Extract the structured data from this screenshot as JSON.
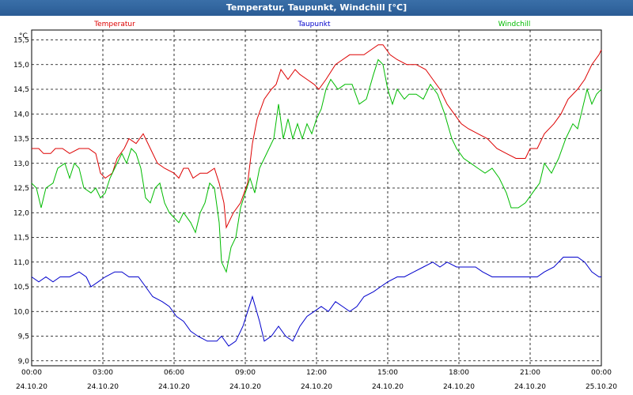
{
  "window": {
    "title": "Temperatur, Taupunkt, Windchill [°C]"
  },
  "chart_data": {
    "type": "line",
    "title": "Temperatur, Taupunkt, Windchill [°C]",
    "ylabel": "°C",
    "ylim": [
      8.9,
      15.7
    ],
    "y_ticks": [
      "9,0",
      "9,5",
      "10,0",
      "10,5",
      "11,0",
      "11,5",
      "12,0",
      "12,5",
      "13,0",
      "13,5",
      "14,0",
      "14,5",
      "15,0",
      "15,5"
    ],
    "x_ticks": [
      {
        "time": "00:00",
        "date": "24.10.20"
      },
      {
        "time": "03:00",
        "date": "24.10.20"
      },
      {
        "time": "06:00",
        "date": "24.10.20"
      },
      {
        "time": "09:00",
        "date": "24.10.20"
      },
      {
        "time": "12:00",
        "date": "24.10.20"
      },
      {
        "time": "15:00",
        "date": "24.10.20"
      },
      {
        "time": "18:00",
        "date": "24.10.20"
      },
      {
        "time": "21:00",
        "date": "24.10.20"
      },
      {
        "time": "00:00",
        "date": "25.10.20"
      }
    ],
    "x_range_hours": [
      0,
      24
    ],
    "grid": true,
    "legend_position": "top",
    "series": [
      {
        "name": "Temperatur",
        "color": "#dd0000",
        "points": [
          [
            0,
            13.3
          ],
          [
            0.3,
            13.3
          ],
          [
            0.5,
            13.2
          ],
          [
            0.8,
            13.2
          ],
          [
            1.0,
            13.3
          ],
          [
            1.3,
            13.3
          ],
          [
            1.6,
            13.2
          ],
          [
            2.0,
            13.3
          ],
          [
            2.4,
            13.3
          ],
          [
            2.7,
            13.2
          ],
          [
            2.9,
            12.8
          ],
          [
            3.1,
            12.7
          ],
          [
            3.4,
            12.8
          ],
          [
            3.6,
            13.1
          ],
          [
            3.9,
            13.3
          ],
          [
            4.1,
            13.5
          ],
          [
            4.4,
            13.4
          ],
          [
            4.7,
            13.6
          ],
          [
            5.0,
            13.3
          ],
          [
            5.3,
            13.0
          ],
          [
            5.6,
            12.9
          ],
          [
            6.0,
            12.8
          ],
          [
            6.2,
            12.7
          ],
          [
            6.4,
            12.9
          ],
          [
            6.6,
            12.9
          ],
          [
            6.8,
            12.7
          ],
          [
            7.1,
            12.8
          ],
          [
            7.4,
            12.8
          ],
          [
            7.7,
            12.9
          ],
          [
            7.9,
            12.6
          ],
          [
            8.1,
            12.2
          ],
          [
            8.2,
            11.7
          ],
          [
            8.5,
            12.0
          ],
          [
            8.8,
            12.2
          ],
          [
            9.1,
            12.6
          ],
          [
            9.3,
            13.4
          ],
          [
            9.5,
            13.9
          ],
          [
            9.8,
            14.3
          ],
          [
            10.1,
            14.5
          ],
          [
            10.3,
            14.6
          ],
          [
            10.5,
            14.9
          ],
          [
            10.8,
            14.7
          ],
          [
            11.1,
            14.9
          ],
          [
            11.3,
            14.8
          ],
          [
            11.6,
            14.7
          ],
          [
            11.9,
            14.6
          ],
          [
            12.1,
            14.5
          ],
          [
            12.4,
            14.7
          ],
          [
            12.8,
            15.0
          ],
          [
            13.1,
            15.1
          ],
          [
            13.4,
            15.2
          ],
          [
            13.7,
            15.2
          ],
          [
            14.0,
            15.2
          ],
          [
            14.3,
            15.3
          ],
          [
            14.6,
            15.4
          ],
          [
            14.8,
            15.4
          ],
          [
            15.1,
            15.2
          ],
          [
            15.4,
            15.1
          ],
          [
            15.8,
            15.0
          ],
          [
            16.2,
            15.0
          ],
          [
            16.6,
            14.9
          ],
          [
            16.9,
            14.7
          ],
          [
            17.2,
            14.5
          ],
          [
            17.5,
            14.2
          ],
          [
            17.8,
            14.0
          ],
          [
            18.1,
            13.8
          ],
          [
            18.4,
            13.7
          ],
          [
            18.8,
            13.6
          ],
          [
            19.2,
            13.5
          ],
          [
            19.6,
            13.3
          ],
          [
            20.0,
            13.2
          ],
          [
            20.4,
            13.1
          ],
          [
            20.8,
            13.1
          ],
          [
            21.0,
            13.3
          ],
          [
            21.3,
            13.3
          ],
          [
            21.6,
            13.6
          ],
          [
            22.0,
            13.8
          ],
          [
            22.3,
            14.0
          ],
          [
            22.6,
            14.3
          ],
          [
            23.0,
            14.5
          ],
          [
            23.3,
            14.7
          ],
          [
            23.6,
            15.0
          ],
          [
            23.9,
            15.2
          ],
          [
            24.0,
            15.3
          ]
        ]
      },
      {
        "name": "Taupunkt",
        "color": "#0000cc",
        "points": [
          [
            0,
            10.7
          ],
          [
            0.3,
            10.6
          ],
          [
            0.6,
            10.7
          ],
          [
            0.9,
            10.6
          ],
          [
            1.2,
            10.7
          ],
          [
            1.6,
            10.7
          ],
          [
            2.0,
            10.8
          ],
          [
            2.3,
            10.7
          ],
          [
            2.5,
            10.5
          ],
          [
            2.8,
            10.6
          ],
          [
            3.1,
            10.7
          ],
          [
            3.5,
            10.8
          ],
          [
            3.8,
            10.8
          ],
          [
            4.1,
            10.7
          ],
          [
            4.5,
            10.7
          ],
          [
            4.8,
            10.5
          ],
          [
            5.1,
            10.3
          ],
          [
            5.5,
            10.2
          ],
          [
            5.8,
            10.1
          ],
          [
            6.1,
            9.9
          ],
          [
            6.4,
            9.8
          ],
          [
            6.7,
            9.6
          ],
          [
            7.0,
            9.5
          ],
          [
            7.4,
            9.4
          ],
          [
            7.8,
            9.4
          ],
          [
            8.0,
            9.5
          ],
          [
            8.3,
            9.3
          ],
          [
            8.6,
            9.4
          ],
          [
            8.9,
            9.7
          ],
          [
            9.1,
            10.0
          ],
          [
            9.3,
            10.3
          ],
          [
            9.6,
            9.8
          ],
          [
            9.8,
            9.4
          ],
          [
            10.1,
            9.5
          ],
          [
            10.4,
            9.7
          ],
          [
            10.7,
            9.5
          ],
          [
            11.0,
            9.4
          ],
          [
            11.3,
            9.7
          ],
          [
            11.6,
            9.9
          ],
          [
            11.9,
            10.0
          ],
          [
            12.2,
            10.1
          ],
          [
            12.5,
            10.0
          ],
          [
            12.8,
            10.2
          ],
          [
            13.1,
            10.1
          ],
          [
            13.4,
            10.0
          ],
          [
            13.7,
            10.1
          ],
          [
            14.0,
            10.3
          ],
          [
            14.4,
            10.4
          ],
          [
            14.7,
            10.5
          ],
          [
            15.0,
            10.6
          ],
          [
            15.4,
            10.7
          ],
          [
            15.7,
            10.7
          ],
          [
            16.1,
            10.8
          ],
          [
            16.5,
            10.9
          ],
          [
            16.9,
            11.0
          ],
          [
            17.2,
            10.9
          ],
          [
            17.5,
            11.0
          ],
          [
            17.9,
            10.9
          ],
          [
            18.3,
            10.9
          ],
          [
            18.7,
            10.9
          ],
          [
            19.0,
            10.8
          ],
          [
            19.4,
            10.7
          ],
          [
            19.8,
            10.7
          ],
          [
            20.3,
            10.7
          ],
          [
            20.8,
            10.7
          ],
          [
            21.3,
            10.7
          ],
          [
            21.6,
            10.8
          ],
          [
            22.0,
            10.9
          ],
          [
            22.4,
            11.1
          ],
          [
            22.7,
            11.1
          ],
          [
            23.0,
            11.1
          ],
          [
            23.3,
            11.0
          ],
          [
            23.6,
            10.8
          ],
          [
            23.9,
            10.7
          ],
          [
            24.0,
            10.7
          ]
        ]
      },
      {
        "name": "Windchill",
        "color": "#00bb00",
        "points": [
          [
            0,
            12.6
          ],
          [
            0.2,
            12.5
          ],
          [
            0.4,
            12.1
          ],
          [
            0.6,
            12.5
          ],
          [
            0.9,
            12.6
          ],
          [
            1.1,
            12.9
          ],
          [
            1.4,
            13.0
          ],
          [
            1.6,
            12.7
          ],
          [
            1.8,
            13.0
          ],
          [
            2.0,
            12.9
          ],
          [
            2.2,
            12.5
          ],
          [
            2.5,
            12.4
          ],
          [
            2.7,
            12.5
          ],
          [
            2.9,
            12.3
          ],
          [
            3.1,
            12.4
          ],
          [
            3.3,
            12.7
          ],
          [
            3.5,
            12.9
          ],
          [
            3.8,
            13.2
          ],
          [
            4.0,
            13.0
          ],
          [
            4.2,
            13.3
          ],
          [
            4.4,
            13.2
          ],
          [
            4.6,
            12.9
          ],
          [
            4.8,
            12.3
          ],
          [
            5.0,
            12.2
          ],
          [
            5.2,
            12.5
          ],
          [
            5.4,
            12.6
          ],
          [
            5.6,
            12.2
          ],
          [
            5.8,
            12.0
          ],
          [
            6.0,
            11.9
          ],
          [
            6.2,
            11.8
          ],
          [
            6.4,
            12.0
          ],
          [
            6.7,
            11.8
          ],
          [
            6.9,
            11.6
          ],
          [
            7.1,
            12.0
          ],
          [
            7.3,
            12.2
          ],
          [
            7.5,
            12.6
          ],
          [
            7.7,
            12.5
          ],
          [
            7.9,
            11.8
          ],
          [
            8.0,
            11.0
          ],
          [
            8.2,
            10.8
          ],
          [
            8.4,
            11.3
          ],
          [
            8.6,
            11.5
          ],
          [
            8.8,
            12.1
          ],
          [
            9.0,
            12.4
          ],
          [
            9.2,
            12.7
          ],
          [
            9.4,
            12.4
          ],
          [
            9.6,
            12.9
          ],
          [
            9.8,
            13.1
          ],
          [
            10.0,
            13.3
          ],
          [
            10.2,
            13.5
          ],
          [
            10.4,
            14.2
          ],
          [
            10.6,
            13.5
          ],
          [
            10.8,
            13.9
          ],
          [
            11.0,
            13.5
          ],
          [
            11.2,
            13.8
          ],
          [
            11.4,
            13.5
          ],
          [
            11.6,
            13.8
          ],
          [
            11.8,
            13.6
          ],
          [
            12.0,
            13.9
          ],
          [
            12.2,
            14.1
          ],
          [
            12.4,
            14.5
          ],
          [
            12.6,
            14.7
          ],
          [
            12.9,
            14.5
          ],
          [
            13.2,
            14.6
          ],
          [
            13.5,
            14.6
          ],
          [
            13.8,
            14.2
          ],
          [
            14.1,
            14.3
          ],
          [
            14.4,
            14.8
          ],
          [
            14.6,
            15.1
          ],
          [
            14.8,
            15.0
          ],
          [
            15.0,
            14.5
          ],
          [
            15.2,
            14.2
          ],
          [
            15.4,
            14.5
          ],
          [
            15.7,
            14.3
          ],
          [
            15.9,
            14.4
          ],
          [
            16.2,
            14.4
          ],
          [
            16.5,
            14.3
          ],
          [
            16.8,
            14.6
          ],
          [
            17.1,
            14.4
          ],
          [
            17.4,
            14.0
          ],
          [
            17.7,
            13.5
          ],
          [
            17.9,
            13.3
          ],
          [
            18.2,
            13.1
          ],
          [
            18.5,
            13.0
          ],
          [
            18.8,
            12.9
          ],
          [
            19.1,
            12.8
          ],
          [
            19.4,
            12.9
          ],
          [
            19.7,
            12.7
          ],
          [
            20.0,
            12.4
          ],
          [
            20.2,
            12.1
          ],
          [
            20.5,
            12.1
          ],
          [
            20.8,
            12.2
          ],
          [
            21.1,
            12.4
          ],
          [
            21.4,
            12.6
          ],
          [
            21.6,
            13.0
          ],
          [
            21.9,
            12.8
          ],
          [
            22.2,
            13.1
          ],
          [
            22.5,
            13.5
          ],
          [
            22.8,
            13.8
          ],
          [
            23.0,
            13.7
          ],
          [
            23.2,
            14.1
          ],
          [
            23.4,
            14.5
          ],
          [
            23.6,
            14.2
          ],
          [
            23.8,
            14.4
          ],
          [
            24.0,
            14.5
          ]
        ]
      }
    ]
  }
}
